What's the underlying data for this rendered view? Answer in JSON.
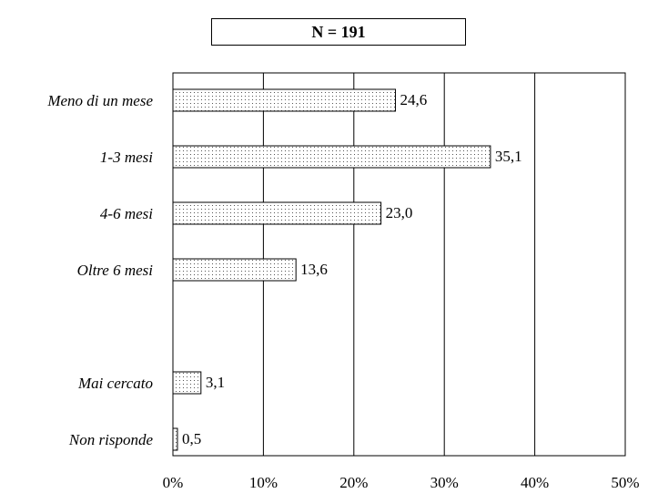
{
  "sample_label": "N = 191",
  "chart_data": {
    "type": "bar",
    "orientation": "horizontal",
    "categories": [
      "Meno di un mese",
      "1-3 mesi",
      "4-6 mesi",
      "Oltre 6 mesi",
      "",
      "Mai cercato",
      "Non risponde"
    ],
    "values": [
      24.6,
      35.1,
      23.0,
      13.6,
      null,
      3.1,
      0.5
    ],
    "value_labels": [
      "24,6",
      "35,1",
      "23,0",
      "13,6",
      "",
      "3,1",
      "0,5"
    ],
    "xlim": [
      0,
      50
    ],
    "x_ticks": [
      0,
      10,
      20,
      30,
      40,
      50
    ],
    "x_tick_labels": [
      "0%",
      "10%",
      "20%",
      "30%",
      "40%",
      "50%"
    ],
    "grid": "vertical",
    "bar_fill": "dotted-pattern"
  }
}
